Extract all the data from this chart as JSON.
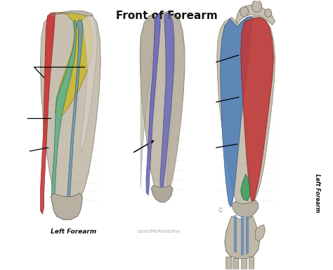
{
  "title": "Front of Forearm",
  "bg_color": "#ffffff",
  "left_label": "Left Forearm",
  "watermark": "LearnMeAnatomy.",
  "right_label": "Left Forearm",
  "lf": {
    "skin": "#d4c9b8",
    "muscle_yellow": "#c8b830",
    "muscle_green": "#60b090",
    "muscle_red": "#c83030",
    "muscle_blue": "#6090b8",
    "muscle_teal": "#40a080"
  },
  "mf": {
    "skin": "#d0c8b8",
    "muscle_purple": "#6868b8"
  },
  "rf": {
    "skin": "#d0c8b8",
    "muscle_blue": "#5080b8",
    "muscle_red": "#c03838",
    "muscle_green": "#40a060"
  }
}
